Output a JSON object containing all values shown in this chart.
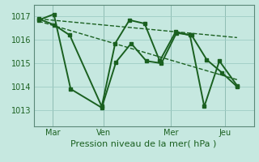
{
  "bg_color": "#c6e8e0",
  "grid_color": "#9eccc4",
  "line_color": "#1a6020",
  "xlabel": "Pression niveau de la mer( hPa )",
  "ylim": [
    1012.3,
    1017.5
  ],
  "yticks": [
    1013,
    1014,
    1015,
    1016,
    1017
  ],
  "xlim": [
    -0.3,
    12.8
  ],
  "day_labels": [
    "Mar",
    "Ven",
    "Mer",
    "Jeu"
  ],
  "day_positions": [
    0.85,
    3.85,
    7.85,
    11.1
  ],
  "series": [
    {
      "x": [
        0.0,
        0.9,
        1.9,
        3.75,
        4.6,
        5.5,
        6.4,
        7.3,
        8.2,
        9.1,
        10.0,
        10.9,
        11.8
      ],
      "y": [
        1016.85,
        1017.1,
        1013.9,
        1013.1,
        1015.05,
        1015.85,
        1015.1,
        1015.0,
        1016.3,
        1016.2,
        1015.15,
        1014.6,
        1014.0
      ],
      "lw": 1.4,
      "ls": "-",
      "marker": "s",
      "ms": 2.5
    },
    {
      "x": [
        0.0,
        0.9,
        1.85,
        3.75,
        4.55,
        5.4,
        6.3,
        7.2,
        8.15,
        9.0,
        9.85,
        10.75,
        11.8
      ],
      "y": [
        1016.9,
        1016.65,
        1016.2,
        1013.15,
        1015.85,
        1016.85,
        1016.7,
        1015.1,
        1016.35,
        1016.2,
        1013.15,
        1015.1,
        1014.05
      ],
      "lw": 1.4,
      "ls": "-",
      "marker": "s",
      "ms": 2.5
    },
    {
      "x": [
        0.0,
        11.8
      ],
      "y": [
        1016.9,
        1016.1
      ],
      "lw": 1.0,
      "ls": "--",
      "marker": null,
      "ms": 0
    },
    {
      "x": [
        0.0,
        11.8
      ],
      "y": [
        1016.8,
        1014.3
      ],
      "lw": 1.0,
      "ls": "--",
      "marker": null,
      "ms": 0
    }
  ]
}
